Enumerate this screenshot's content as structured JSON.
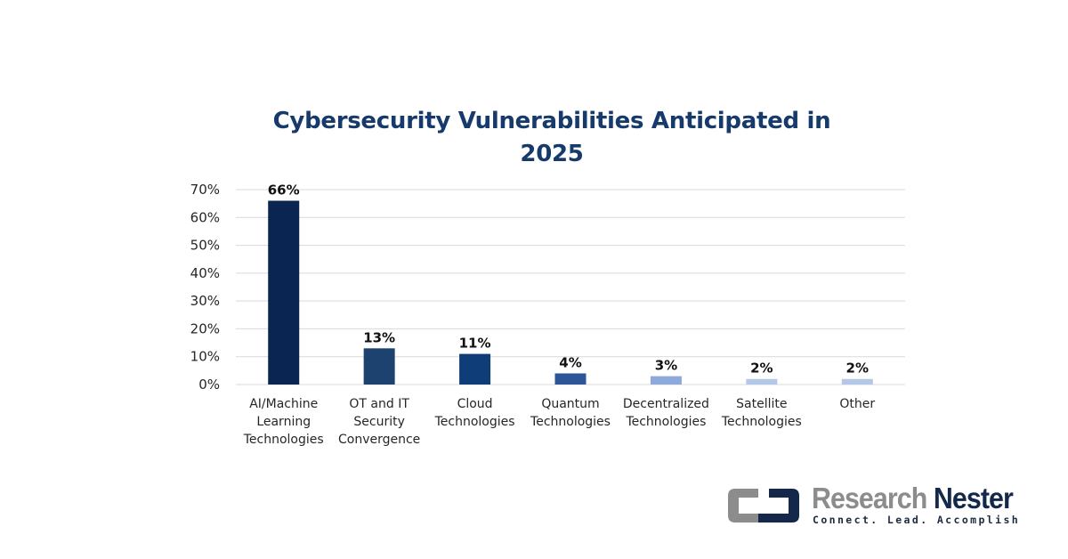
{
  "chart_data": {
    "type": "bar",
    "title": "Cybersecurity Vulnerabilities Anticipated in 2025",
    "title_lines": [
      "Cybersecurity Vulnerabilities Anticipated in",
      "2025"
    ],
    "xlabel": "",
    "ylabel": "",
    "ylim": [
      0,
      70
    ],
    "yticks": [
      0,
      10,
      20,
      30,
      40,
      50,
      60,
      70
    ],
    "ytick_labels": [
      "0%",
      "10%",
      "20%",
      "30%",
      "40%",
      "50%",
      "60%",
      "70%"
    ],
    "grid": true,
    "categories": [
      [
        "AI/Machine",
        "Learning",
        "Technologies"
      ],
      [
        "OT and IT",
        "Security",
        "Convergence"
      ],
      [
        "Cloud",
        "Technologies"
      ],
      [
        "Quantum",
        "Technologies"
      ],
      [
        "Decentralized",
        "Technologies"
      ],
      [
        "Satellite",
        "Technologies"
      ],
      [
        "Other"
      ]
    ],
    "values": [
      66,
      13,
      11,
      4,
      3,
      2,
      2
    ],
    "data_labels": [
      "66%",
      "13%",
      "11%",
      "4%",
      "3%",
      "2%",
      "2%"
    ],
    "colors": [
      "#0b2552",
      "#1d426f",
      "#0f3d78",
      "#2e5597",
      "#8eaadb",
      "#b4c7e7",
      "#b4c7e7"
    ],
    "grid_color": "#d9d9d9"
  },
  "logo": {
    "name_part1": "Research",
    "name_part2": "Nester",
    "tagline": "Connect. Lead. Accomplish",
    "colors": {
      "gray": "#8c8c8c",
      "navy": "#13284a"
    }
  }
}
